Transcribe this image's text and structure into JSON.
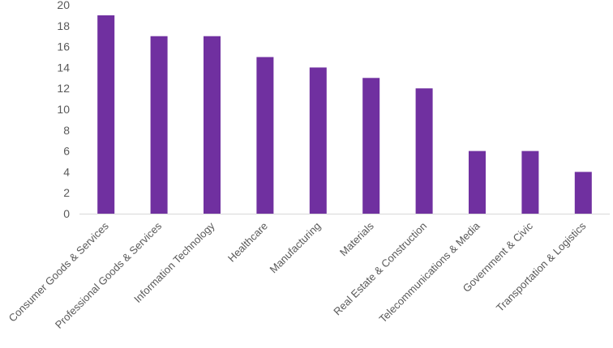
{
  "chart_data": {
    "type": "bar",
    "title": "",
    "xlabel": "",
    "ylabel": "",
    "categories": [
      "Consumer Goods & Services",
      "Professional Goods & Services",
      "Information Technology",
      "Healthcare",
      "Manufacturing",
      "Materials",
      "Real Estate & Construction",
      "Telecommunications & Media",
      "Government & Civic",
      "Transportation & Logistics"
    ],
    "values": [
      19,
      17,
      17,
      15,
      14,
      13,
      12,
      6,
      6,
      4
    ],
    "ylim": [
      0,
      20
    ],
    "yticks": [
      0,
      2,
      4,
      6,
      8,
      10,
      12,
      14,
      16,
      18,
      20
    ],
    "grid": false,
    "legend": "none",
    "bar_color": "#7030A0",
    "axis_color": "#D9D9D9",
    "text_color": "#595959"
  }
}
